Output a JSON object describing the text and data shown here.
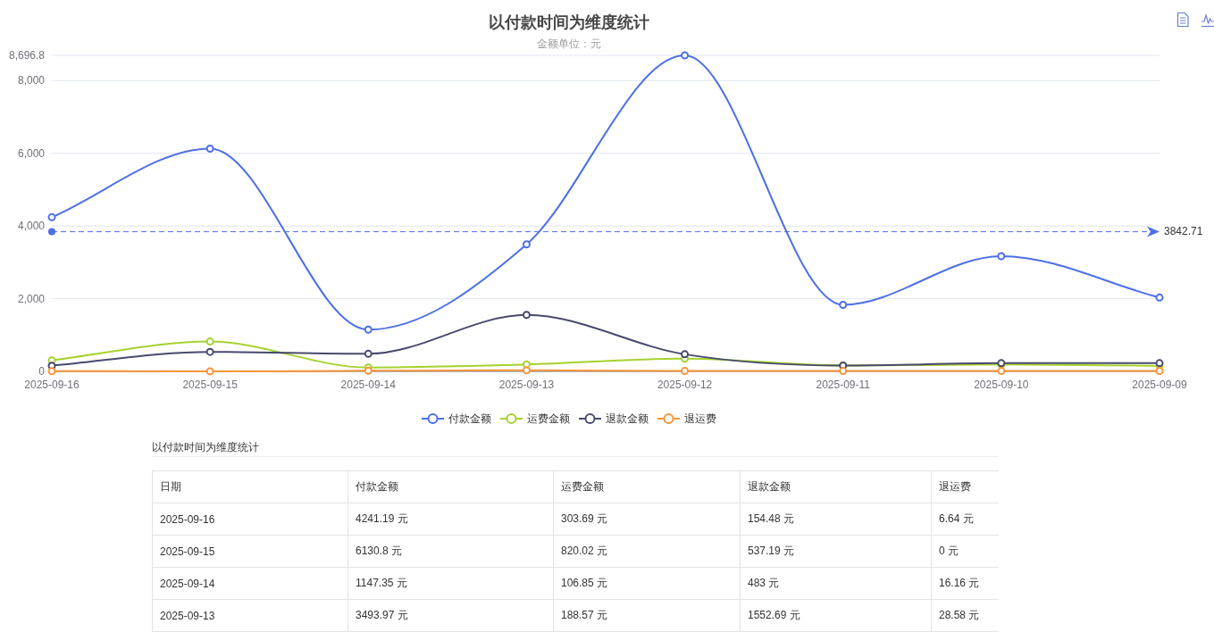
{
  "chart_data": [
    {
      "type": "line",
      "title": "以付款时间为维度统计",
      "subtitle": "金额单位：元",
      "categories": [
        "2025-09-16",
        "2025-09-15",
        "2025-09-14",
        "2025-09-13",
        "2025-09-12",
        "2025-09-11",
        "2025-09-10",
        "2025-09-09"
      ],
      "series": [
        {
          "name": "付款金额",
          "color": "#4d6fe8",
          "values": [
            4241.19,
            6130.8,
            1147.35,
            3493.97,
            8696.8,
            1830,
            3170,
            2030
          ]
        },
        {
          "name": "运费金额",
          "color": "#a7d22e",
          "values": [
            303.69,
            820.02,
            106.85,
            188.57,
            350,
            160,
            190,
            150
          ]
        },
        {
          "name": "退款金额",
          "color": "#484a6c",
          "values": [
            154.48,
            537.19,
            483,
            1552.69,
            470,
            160,
            225,
            225
          ]
        },
        {
          "name": "退运费",
          "color": "#f8953a",
          "values": [
            6.64,
            0,
            16.16,
            28.58,
            10,
            10,
            10,
            10
          ]
        }
      ],
      "ylim": [
        0,
        8696.8
      ],
      "yticks": [
        0,
        {
          "value": 2000,
          "label": "2,000"
        },
        {
          "value": 4000,
          "label": "4,000"
        },
        {
          "value": 6000,
          "label": "6,000"
        },
        {
          "value": 8000,
          "label": "8,000"
        },
        {
          "value": 8696.8,
          "label": "8,696.8"
        }
      ],
      "grid": "y",
      "legend": "bottom",
      "marker": "circle",
      "line_style": "solid",
      "ref_lines": [
        {
          "axis": "y",
          "value": 3842.71,
          "label": "3842.71",
          "color": "#4d6fe8",
          "line_style": "dashed"
        }
      ]
    },
    {
      "type": "other",
      "title": "以付款时间为维度统计",
      "annotations": [
        "日期",
        "付款金额",
        "运费金额",
        "退款金额",
        "退运费",
        "2025-09-16",
        "4241.19 元",
        "303.69 元",
        "154.48 元",
        "6.64 元",
        "2025-09-15",
        "6130.8 元",
        "820.02 元",
        "537.19 元",
        "0 元",
        "2025-09-14",
        "1147.35 元",
        "106.85 元",
        "483 元",
        "16.16 元",
        "2025-09-13",
        "3493.97 元",
        "188.57 元",
        "1552.69 元",
        "28.58 元"
      ]
    }
  ]
}
